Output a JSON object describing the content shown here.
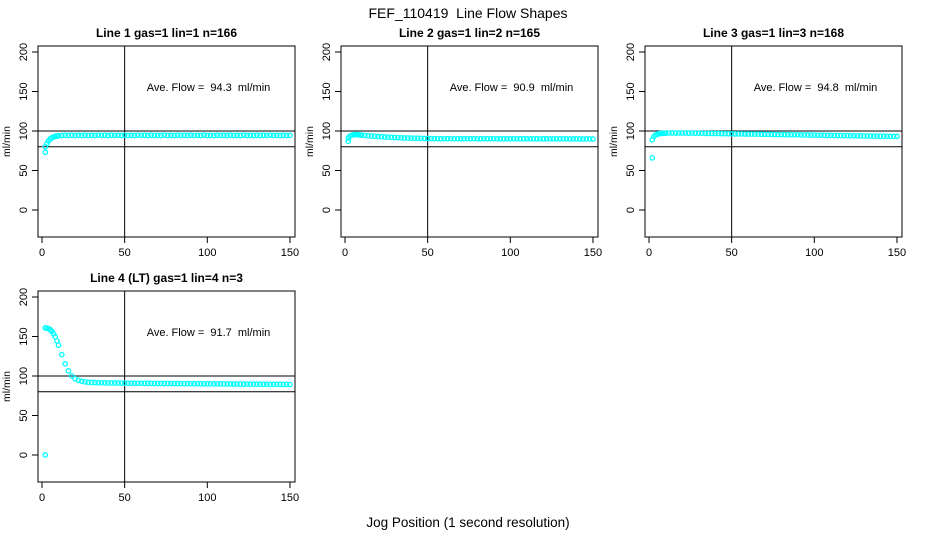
{
  "title": "FEF_110419  Line Flow Shapes",
  "global_xlabel": "Jog Position (1 second resolution)",
  "colors": {
    "points": "#00FFFF",
    "reference_lines": "#000000",
    "axis": "#000000"
  },
  "chart_data": [
    {
      "type": "scatter",
      "title": "Line 1 gas=1 lin=1 n=166",
      "annotation": "Ave. Flow =  94.3  ml/min",
      "ylabel": "ml/min",
      "xticks": [
        0,
        50,
        100,
        150
      ],
      "yticks": [
        0,
        50,
        100,
        150,
        200
      ],
      "xlim": [
        0,
        150
      ],
      "ylim": [
        0,
        200
      ],
      "hlines": [
        100,
        80
      ],
      "vlines": [
        50
      ],
      "outliers": [
        [
          2,
          73
        ]
      ],
      "x": [
        2,
        3,
        4,
        5,
        6,
        7,
        8,
        9,
        10,
        12,
        14,
        16,
        18,
        20,
        22,
        24,
        26,
        28,
        30,
        32,
        34,
        36,
        38,
        40,
        42,
        44,
        46,
        48,
        50,
        52,
        54,
        56,
        58,
        60,
        62,
        64,
        66,
        68,
        70,
        72,
        74,
        76,
        78,
        80,
        82,
        84,
        86,
        88,
        90,
        92,
        94,
        96,
        98,
        100,
        102,
        104,
        106,
        108,
        110,
        112,
        114,
        116,
        118,
        120,
        122,
        124,
        126,
        128,
        130,
        132,
        134,
        136,
        138,
        140,
        142,
        144,
        146,
        148,
        150
      ],
      "y": [
        80,
        84,
        87.5,
        90,
        91.5,
        92.5,
        93.2,
        93.6,
        94,
        94.3,
        94.6,
        94.3,
        94.8,
        94.4,
        94.6,
        94.3,
        94.8,
        94.4,
        94.6,
        94.3,
        94.8,
        94.4,
        94.6,
        94.3,
        94.8,
        94.4,
        94.6,
        94.3,
        94.8,
        94.4,
        94.6,
        94.3,
        94.8,
        94.4,
        94.6,
        94.3,
        94.8,
        94.4,
        94.6,
        94.3,
        94.8,
        94.4,
        94.6,
        94.3,
        94.8,
        94.4,
        94.6,
        94.3,
        94.8,
        94.4,
        94.6,
        94.3,
        94.8,
        94.4,
        94.6,
        94.3,
        94.8,
        94.4,
        94.6,
        94.3,
        94.8,
        94.4,
        94.6,
        94.3,
        94.8,
        94.4,
        94.6,
        94.3,
        94.8,
        94.4,
        94.6,
        94.3,
        94.8,
        94.4,
        94.6,
        94.3,
        94.8,
        94.4,
        94.5
      ]
    },
    {
      "type": "scatter",
      "title": "Line 2 gas=1 lin=2 n=165",
      "annotation": "Ave. Flow =  90.9  ml/min",
      "ylabel": "ml/min",
      "xticks": [
        0,
        50,
        100,
        150
      ],
      "yticks": [
        0,
        50,
        100,
        150,
        200
      ],
      "xlim": [
        0,
        150
      ],
      "ylim": [
        0,
        200
      ],
      "hlines": [
        100,
        80
      ],
      "vlines": [
        50
      ],
      "outliers": [
        [
          2,
          87
        ]
      ],
      "x": [
        2,
        3,
        4,
        5,
        6,
        7,
        8,
        9,
        10,
        12,
        14,
        16,
        18,
        20,
        22,
        24,
        26,
        28,
        30,
        32,
        34,
        36,
        38,
        40,
        42,
        44,
        46,
        48,
        50,
        52,
        54,
        56,
        58,
        60,
        62,
        64,
        66,
        68,
        70,
        72,
        74,
        76,
        78,
        80,
        82,
        84,
        86,
        88,
        90,
        92,
        94,
        96,
        98,
        100,
        102,
        104,
        106,
        108,
        110,
        112,
        114,
        116,
        118,
        120,
        122,
        124,
        126,
        128,
        130,
        132,
        134,
        136,
        138,
        140,
        142,
        144,
        146,
        148,
        150
      ],
      "y": [
        91,
        93.5,
        94.5,
        95.2,
        95.5,
        95.4,
        95.2,
        95,
        94.8,
        94.4,
        94,
        93.7,
        93.4,
        93,
        92.7,
        92.4,
        92.2,
        92,
        91.8,
        91.6,
        91.4,
        91.2,
        91.1,
        91,
        90.9,
        90.8,
        90.7,
        90.6,
        90.5,
        90.4,
        90.2,
        90.4,
        90.1,
        90.3,
        90.2,
        90.4,
        90.1,
        90.3,
        90.2,
        90.1,
        90.3,
        90.2,
        90.4,
        90.1,
        90.2,
        90.3,
        90.1,
        90.2,
        90.3,
        90.1,
        90.2,
        90,
        90.2,
        90.1,
        90.3,
        90,
        90.2,
        90.1,
        90.2,
        90,
        90.1,
        90.2,
        90,
        90.1,
        90.2,
        90,
        90.1,
        90,
        90.2,
        90.1,
        90,
        90.1,
        90,
        90.1,
        90,
        89.9,
        90.1,
        90,
        89.9
      ]
    },
    {
      "type": "scatter",
      "title": "Line 3 gas=1 lin=3 n=168",
      "annotation": "Ave. Flow =  94.8  ml/min",
      "ylabel": "ml/min",
      "xticks": [
        0,
        50,
        100,
        150
      ],
      "yticks": [
        0,
        50,
        100,
        150,
        200
      ],
      "xlim": [
        0,
        150
      ],
      "ylim": [
        0,
        200
      ],
      "hlines": [
        100,
        80
      ],
      "vlines": [
        50
      ],
      "outliers": [
        [
          2,
          66
        ]
      ],
      "x": [
        2,
        3,
        4,
        5,
        6,
        7,
        8,
        9,
        10,
        12,
        14,
        16,
        18,
        20,
        22,
        24,
        26,
        28,
        30,
        32,
        34,
        36,
        38,
        40,
        42,
        44,
        46,
        48,
        50,
        52,
        54,
        56,
        58,
        60,
        62,
        64,
        66,
        68,
        70,
        72,
        74,
        76,
        78,
        80,
        82,
        84,
        86,
        88,
        90,
        92,
        94,
        96,
        98,
        100,
        102,
        104,
        106,
        108,
        110,
        112,
        114,
        116,
        118,
        120,
        122,
        124,
        126,
        128,
        130,
        132,
        134,
        136,
        138,
        140,
        142,
        144,
        146,
        148,
        150
      ],
      "y": [
        89,
        93,
        95,
        96,
        96.5,
        96.8,
        97,
        97.1,
        97.2,
        97.4,
        97.5,
        97.4,
        97.5,
        97.4,
        97.5,
        97.3,
        97.4,
        97.2,
        97.3,
        97.1,
        97,
        97,
        96.9,
        96.8,
        96.8,
        96.7,
        96.6,
        96.6,
        96.5,
        96.4,
        96.4,
        96.3,
        96.2,
        96.2,
        96.1,
        96,
        96,
        95.9,
        95.8,
        95.8,
        95.7,
        95.6,
        95.6,
        95.5,
        95.4,
        95.4,
        95.3,
        95.2,
        95.2,
        95.1,
        95,
        94.9,
        94.9,
        94.8,
        94.7,
        94.7,
        94.6,
        94.5,
        94.5,
        94.4,
        94.3,
        94.2,
        94.2,
        94.1,
        94,
        94,
        93.9,
        93.8,
        93.7,
        93.7,
        93.6,
        93.5,
        93.5,
        93.4,
        93.4,
        93.3,
        93.3,
        93.2,
        93.2
      ]
    },
    {
      "type": "scatter",
      "title": "Line 4 (LT) gas=1 lin=4 n=3",
      "annotation": "Ave. Flow =  91.7  ml/min",
      "ylabel": "ml/min",
      "xticks": [
        0,
        50,
        100,
        150
      ],
      "yticks": [
        0,
        50,
        100,
        150,
        200
      ],
      "xlim": [
        0,
        150
      ],
      "ylim": [
        0,
        200
      ],
      "hlines": [
        100,
        80
      ],
      "vlines": [
        50
      ],
      "outliers": [
        [
          2,
          0
        ]
      ],
      "x": [
        2,
        3,
        4,
        5,
        6,
        7,
        8,
        9,
        10,
        12,
        14,
        16,
        18,
        20,
        22,
        24,
        26,
        28,
        30,
        32,
        34,
        36,
        38,
        40,
        42,
        44,
        46,
        48,
        50,
        52,
        54,
        56,
        58,
        60,
        62,
        64,
        66,
        68,
        70,
        72,
        74,
        76,
        78,
        80,
        82,
        84,
        86,
        88,
        90,
        92,
        94,
        96,
        98,
        100,
        102,
        104,
        106,
        108,
        110,
        112,
        114,
        116,
        118,
        120,
        122,
        124,
        126,
        128,
        130,
        132,
        134,
        136,
        138,
        140,
        142,
        144,
        146,
        148,
        150
      ],
      "y": [
        161,
        160.5,
        160,
        158.5,
        156.5,
        153.5,
        149.5,
        144.5,
        139,
        127,
        115.5,
        106.5,
        100,
        96.5,
        94.5,
        93.3,
        92.6,
        92.1,
        91.8,
        91.6,
        91.5,
        91.4,
        91.3,
        91.2,
        91.2,
        91.1,
        91.1,
        91,
        91,
        90.9,
        90.9,
        90.8,
        90.9,
        90.8,
        90.7,
        90.8,
        90.7,
        90.6,
        90.7,
        90.6,
        90.5,
        90.6,
        90.5,
        90.4,
        90.5,
        90.4,
        90.3,
        90.4,
        90.3,
        90.2,
        90.3,
        90.2,
        90.1,
        90.2,
        90.1,
        90,
        90.1,
        90,
        89.9,
        90,
        89.9,
        89.8,
        89.9,
        89.8,
        89.7,
        89.8,
        89.7,
        89.6,
        89.7,
        89.6,
        89.5,
        89.6,
        89.5,
        89.4,
        89.5,
        89.4,
        89.3,
        89.4,
        89.3
      ]
    }
  ]
}
